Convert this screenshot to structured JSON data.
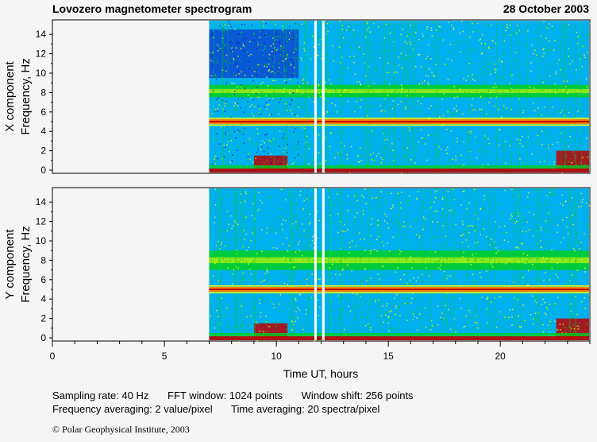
{
  "header": {
    "title": "Lovozero magnetometer spectrogram",
    "date": "28 October 2003"
  },
  "chart_data": [
    {
      "type": "heatmap",
      "component": "X",
      "ylabel_line1": "X  component",
      "ylabel_line2": "Frequency, Hz",
      "x_range_hours": [
        0,
        24
      ],
      "y_range_hz": [
        0,
        15
      ],
      "y_ticks": [
        0,
        2,
        4,
        6,
        8,
        10,
        12,
        14
      ],
      "data_start_hour": 7.0,
      "gaps_hours": [
        11.75,
        12.1
      ],
      "narrowband_line_hz": 5.0,
      "bands": [
        {
          "name": "low-power",
          "hz": [
            9.5,
            14.5
          ],
          "hours": [
            7,
            11
          ]
        },
        {
          "name": "enhanced",
          "hz": [
            7.5,
            8.8
          ],
          "hours": [
            7,
            24
          ]
        },
        {
          "name": "burst",
          "hz": [
            0,
            1.5
          ],
          "hours": [
            9,
            10.5
          ]
        },
        {
          "name": "burst",
          "hz": [
            0,
            2
          ],
          "hours": [
            22.5,
            24
          ]
        }
      ]
    },
    {
      "type": "heatmap",
      "component": "Y",
      "ylabel_line1": "Y  component",
      "ylabel_line2": "Frequency, Hz",
      "x_range_hours": [
        0,
        24
      ],
      "y_range_hz": [
        0,
        15
      ],
      "y_ticks": [
        0,
        2,
        4,
        6,
        8,
        10,
        12,
        14
      ],
      "data_start_hour": 7.0,
      "gaps_hours": [
        11.75,
        12.1
      ],
      "narrowband_line_hz": 5.0,
      "bands": [
        {
          "name": "enhanced",
          "hz": [
            7,
            9
          ],
          "hours": [
            7,
            24
          ]
        },
        {
          "name": "burst",
          "hz": [
            0,
            1.5
          ],
          "hours": [
            9,
            10.5
          ]
        },
        {
          "name": "burst",
          "hz": [
            0,
            2
          ],
          "hours": [
            22.5,
            24
          ]
        }
      ]
    }
  ],
  "x_axis": {
    "label": "Time UT, hours",
    "ticks": [
      0,
      5,
      10,
      15,
      20
    ],
    "range": [
      0,
      24
    ]
  },
  "colors": {
    "background": "#f5f5f5",
    "low": "#1010c0",
    "cyan": "#00b0f0",
    "green": "#00d020",
    "yellow": "#ffff00",
    "orange": "#ff8000",
    "red": "#c00000"
  },
  "info": {
    "sampling": "Sampling rate: 40 Hz",
    "fft": "FFT window: 1024 points",
    "shift": "Window shift: 256 points",
    "freq_avg": "Frequency averaging: 2 value/pixel",
    "time_avg": "Time averaging: 20 spectra/pixel"
  },
  "copyright": "© Polar Geophysical Institute, 2003"
}
